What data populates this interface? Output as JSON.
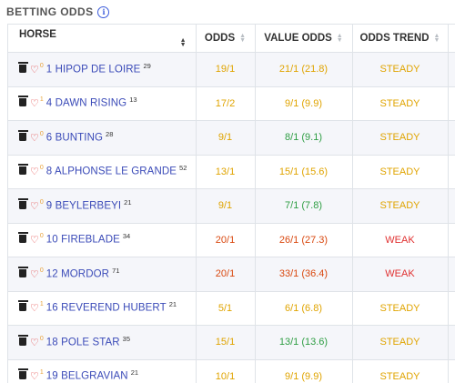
{
  "page": {
    "title": "BETTING ODDS",
    "info_icon": "info-circle-icon"
  },
  "colors": {
    "accent_blue": "#3b4bb8",
    "amber": "#e0a400",
    "green": "#2f9e44",
    "red": "#d9480f",
    "weak_red": "#e03131"
  },
  "table": {
    "headers": {
      "horse": "HORSE",
      "odds": "ODDS",
      "value_odds": "VALUE ODDS",
      "odds_trend": "ODDS TREND"
    },
    "rows": [
      {
        "fav": "0",
        "horse": "1 HIPOP DE LOIRE",
        "runs": "29",
        "odds": "19/1",
        "odds_color": "amber",
        "value_odds": "21/1 (21.8)",
        "value_color": "amber",
        "trend": "STEADY",
        "trend_color": "amber"
      },
      {
        "fav": "1",
        "horse": "4 DAWN RISING",
        "runs": "13",
        "odds": "17/2",
        "odds_color": "amber",
        "value_odds": "9/1 (9.9)",
        "value_color": "amber",
        "trend": "STEADY",
        "trend_color": "amber"
      },
      {
        "fav": "0",
        "horse": "6 BUNTING",
        "runs": "28",
        "odds": "9/1",
        "odds_color": "amber",
        "value_odds": "8/1 (9.1)",
        "value_color": "green",
        "trend": "STEADY",
        "trend_color": "amber"
      },
      {
        "fav": "0",
        "horse": "8 ALPHONSE LE GRANDE",
        "runs": "52",
        "odds": "13/1",
        "odds_color": "amber",
        "value_odds": "15/1 (15.6)",
        "value_color": "amber",
        "trend": "STEADY",
        "trend_color": "amber"
      },
      {
        "fav": "0",
        "horse": "9 BEYLERBEYI",
        "runs": "21",
        "odds": "9/1",
        "odds_color": "amber",
        "value_odds": "7/1 (7.8)",
        "value_color": "green",
        "trend": "STEADY",
        "trend_color": "amber"
      },
      {
        "fav": "0",
        "horse": "10 FIREBLADE",
        "runs": "34",
        "odds": "20/1",
        "odds_color": "red",
        "value_odds": "26/1 (27.3)",
        "value_color": "red",
        "trend": "WEAK",
        "trend_color": "weak"
      },
      {
        "fav": "0",
        "horse": "12 MORDOR",
        "runs": "71",
        "odds": "20/1",
        "odds_color": "red",
        "value_odds": "33/1 (36.4)",
        "value_color": "red",
        "trend": "WEAK",
        "trend_color": "weak"
      },
      {
        "fav": "1",
        "horse": "16 REVEREND HUBERT",
        "runs": "21",
        "odds": "5/1",
        "odds_color": "amber",
        "value_odds": "6/1 (6.8)",
        "value_color": "amber",
        "trend": "STEADY",
        "trend_color": "amber"
      },
      {
        "fav": "0",
        "horse": "18 POLE STAR",
        "runs": "35",
        "odds": "15/1",
        "odds_color": "amber",
        "value_odds": "13/1 (13.6)",
        "value_color": "green",
        "trend": "STEADY",
        "trend_color": "amber"
      },
      {
        "fav": "1",
        "horse": "19 BELGRAVIAN",
        "runs": "21",
        "odds": "10/1",
        "odds_color": "amber",
        "value_odds": "9/1 (9.9)",
        "value_color": "amber",
        "trend": "STEADY",
        "trend_color": "amber"
      }
    ]
  }
}
